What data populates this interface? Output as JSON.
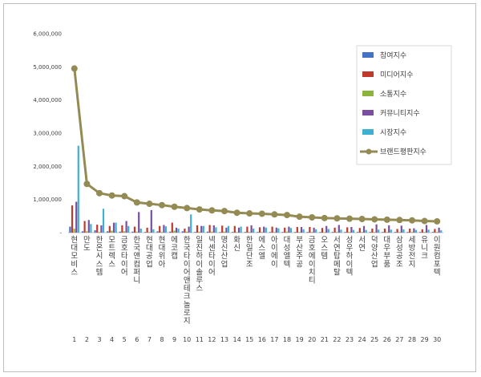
{
  "chart_data": {
    "type": "bar",
    "ylim": [
      0,
      6000000
    ],
    "yticks": [
      "6,000,000",
      "5,000,000",
      "4,000,000",
      "3,000,000",
      "2,000,000",
      "1,000,000",
      "-"
    ],
    "ytick_values": [
      6000000,
      5000000,
      4000000,
      3000000,
      2000000,
      1000000,
      0
    ],
    "categories": [
      "현대모비스",
      "만도",
      "한온시스템",
      "모트렉스",
      "금호타이어",
      "한국앤컴퍼니",
      "현대공업",
      "현대위아",
      "에코캡",
      "한국타이어앤테크놀로지",
      "일진하이솔루스",
      "넥센타이어",
      "명신산업",
      "화신",
      "한일단조",
      "에스엘",
      "아이에이",
      "대성엘텍",
      "부산주공",
      "금호에이치티",
      "오스템",
      "서연탑메탈",
      "성우하이텍",
      "서연",
      "덕양산업",
      "대우부품",
      "삼성공조",
      "세방전지",
      "유니크",
      "이원컴포텍"
    ],
    "x_numbers": [
      "1",
      "2",
      "3",
      "4",
      "5",
      "6",
      "7",
      "8",
      "9",
      "10",
      "11",
      "12",
      "13",
      "14",
      "15",
      "16",
      "17",
      "18",
      "19",
      "20",
      "21",
      "22",
      "23",
      "24",
      "25",
      "26",
      "27",
      "28",
      "29",
      "30"
    ],
    "series": [
      {
        "name": "참여지수",
        "kind": "bar",
        "color": "#4472C4",
        "values": [
          180000,
          40000,
          70000,
          40000,
          30000,
          30000,
          20000,
          40000,
          30000,
          40000,
          20000,
          30000,
          20000,
          20000,
          20000,
          20000,
          20000,
          20000,
          20000,
          20000,
          20000,
          20000,
          20000,
          20000,
          20000,
          20000,
          20000,
          20000,
          20000,
          20000
        ]
      },
      {
        "name": "미디어지수",
        "kind": "bar",
        "color": "#C0392B",
        "values": [
          820000,
          350000,
          240000,
          200000,
          220000,
          180000,
          150000,
          200000,
          300000,
          120000,
          220000,
          230000,
          210000,
          200000,
          180000,
          160000,
          180000,
          150000,
          170000,
          170000,
          140000,
          150000,
          160000,
          140000,
          120000,
          120000,
          110000,
          120000,
          100000,
          110000
        ]
      },
      {
        "name": "소통지수",
        "kind": "bar",
        "color": "#8DB43A",
        "values": [
          120000,
          40000,
          20000,
          60000,
          40000,
          30000,
          20000,
          20000,
          60000,
          30000,
          30000,
          30000,
          30000,
          20000,
          20000,
          20000,
          20000,
          30000,
          20000,
          20000,
          20000,
          20000,
          20000,
          20000,
          20000,
          20000,
          20000,
          20000,
          20000,
          20000
        ]
      },
      {
        "name": "커뮤니티지수",
        "kind": "bar",
        "color": "#7B4FA0",
        "values": [
          930000,
          380000,
          220000,
          300000,
          350000,
          620000,
          680000,
          230000,
          150000,
          180000,
          200000,
          220000,
          150000,
          150000,
          220000,
          180000,
          150000,
          180000,
          170000,
          150000,
          200000,
          230000,
          170000,
          200000,
          250000,
          220000,
          210000,
          130000,
          230000,
          150000
        ]
      },
      {
        "name": "시장지수",
        "kind": "bar",
        "color": "#3FB0D0",
        "values": [
          2620000,
          260000,
          720000,
          300000,
          200000,
          120000,
          100000,
          190000,
          120000,
          550000,
          200000,
          160000,
          200000,
          180000,
          120000,
          150000,
          130000,
          140000,
          100000,
          100000,
          110000,
          90000,
          80000,
          80000,
          90000,
          90000,
          100000,
          80000,
          90000,
          70000
        ]
      },
      {
        "name": "브랜드평판지수",
        "kind": "line",
        "color": "#948A54",
        "values": [
          4950000,
          1470000,
          1190000,
          1120000,
          1100000,
          910000,
          870000,
          830000,
          780000,
          740000,
          700000,
          670000,
          650000,
          600000,
          580000,
          570000,
          550000,
          530000,
          480000,
          460000,
          440000,
          430000,
          420000,
          410000,
          400000,
          390000,
          380000,
          370000,
          350000,
          340000
        ]
      }
    ]
  }
}
